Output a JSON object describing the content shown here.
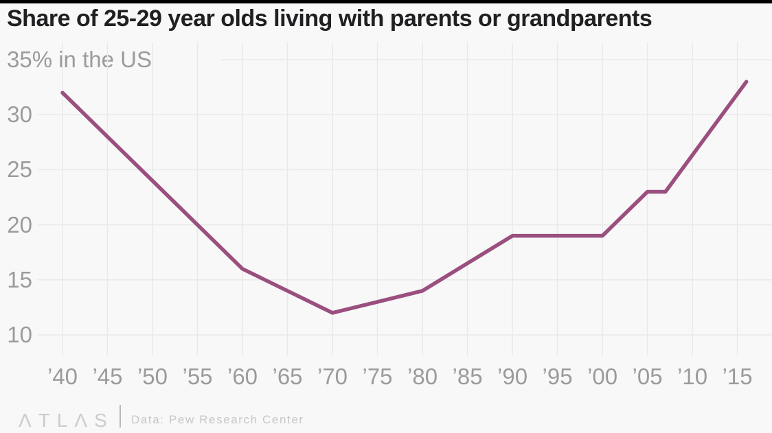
{
  "chart_data": {
    "type": "line",
    "title": "Share of 25-29 year olds living with parents or grandparents",
    "subtitle": "35% in the US",
    "unit": "%",
    "years": [
      1940,
      1950,
      1960,
      1970,
      1975,
      1980,
      1990,
      1995,
      2000,
      2005,
      2007,
      2016
    ],
    "values": [
      32,
      24,
      16,
      12,
      13,
      14,
      19,
      19,
      19,
      23,
      23,
      33
    ],
    "ylim": [
      10,
      35
    ],
    "xlim": [
      1940,
      2019
    ],
    "grid": true,
    "legend": "none",
    "line_color": "#9a4f7f",
    "y_ticks": {
      "top_value": 35,
      "top_label": "35% in the US",
      "values": [
        30,
        25,
        20,
        15,
        10
      ],
      "labels": [
        "30",
        "25",
        "20",
        "15",
        "10"
      ]
    },
    "x_ticks": {
      "values": [
        1940,
        1945,
        1950,
        1955,
        1960,
        1965,
        1970,
        1975,
        1980,
        1985,
        1990,
        1995,
        2000,
        2005,
        2010,
        2015
      ],
      "labels": [
        "’40",
        "’45",
        "’50",
        "’55",
        "’60",
        "’65",
        "’70",
        "’75",
        "’80",
        "’85",
        "’90",
        "’95",
        "’00",
        "’05",
        "’10",
        "’15"
      ]
    },
    "source": "Data: Pew Research Center"
  },
  "footer": {
    "logo": "ΛTLΛS",
    "credit": "Data: Pew Research Center"
  },
  "colors": {
    "background": "#f8f8f8",
    "top_bar": "#000000",
    "grid": "#e9e9e9",
    "line": "#9a4f7f",
    "title_text": "#202022",
    "axis_text": "#9b9b9b",
    "footer_text": "#c7c7c7"
  }
}
